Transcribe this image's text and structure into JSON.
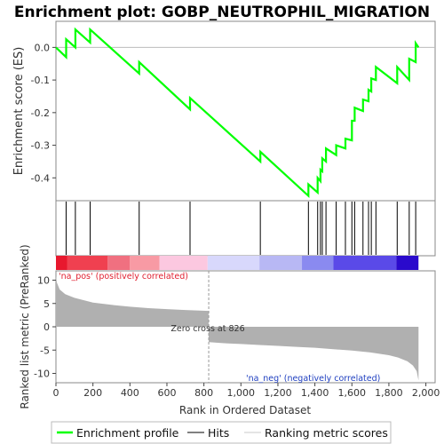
{
  "chart_data": [
    {
      "panel": "enrichment",
      "type": "line",
      "title": "Enrichment plot: GOBP_NEUTROPHIL_MIGRATION",
      "ylabel": "Enrichment score (ES)",
      "ylim": [
        -0.47,
        0.08
      ],
      "yticks": [
        0.0,
        -0.1,
        -0.2,
        -0.3,
        -0.4
      ],
      "ytick_labels": [
        "0.0",
        "-0.1",
        "-0.2",
        "-0.3",
        "-0.4"
      ],
      "color": "#00ff00",
      "x": [
        0,
        55,
        55,
        105,
        105,
        185,
        185,
        450,
        450,
        725,
        725,
        1105,
        1105,
        1365,
        1365,
        1415,
        1415,
        1430,
        1430,
        1440,
        1440,
        1460,
        1460,
        1515,
        1515,
        1565,
        1565,
        1600,
        1600,
        1615,
        1615,
        1660,
        1660,
        1690,
        1690,
        1705,
        1705,
        1730,
        1730,
        1845,
        1845,
        1910,
        1910,
        1945,
        1945,
        1960
      ],
      "y": [
        0.0,
        -0.03,
        0.025,
        0.0,
        0.055,
        0.015,
        0.055,
        -0.08,
        -0.045,
        -0.19,
        -0.155,
        -0.35,
        -0.32,
        -0.455,
        -0.42,
        -0.445,
        -0.4,
        -0.41,
        -0.375,
        -0.38,
        -0.34,
        -0.35,
        -0.31,
        -0.33,
        -0.3,
        -0.31,
        -0.28,
        -0.285,
        -0.225,
        -0.225,
        -0.185,
        -0.195,
        -0.16,
        -0.165,
        -0.13,
        -0.135,
        -0.095,
        -0.1,
        -0.06,
        -0.11,
        -0.06,
        -0.1,
        -0.035,
        -0.045,
        0.013,
        0.0
      ],
      "grid": false,
      "zero_line": true
    },
    {
      "panel": "hits",
      "type": "scatter",
      "series": [
        {
          "name": "Hits",
          "x": [
            55,
            105,
            185,
            450,
            725,
            1105,
            1365,
            1415,
            1430,
            1440,
            1460,
            1515,
            1565,
            1600,
            1615,
            1660,
            1690,
            1705,
            1730,
            1845,
            1910,
            1945
          ]
        }
      ]
    },
    {
      "panel": "color-bar",
      "type": "heatmap",
      "segments": [
        {
          "from": 0,
          "to": 60,
          "color": "#e8182e"
        },
        {
          "from": 60,
          "to": 280,
          "color": "#f04050"
        },
        {
          "from": 280,
          "to": 400,
          "color": "#f07080"
        },
        {
          "from": 400,
          "to": 560,
          "color": "#f89aa4"
        },
        {
          "from": 560,
          "to": 820,
          "color": "#fcc8e0"
        },
        {
          "from": 820,
          "to": 1100,
          "color": "#d8d8fc"
        },
        {
          "from": 1100,
          "to": 1330,
          "color": "#b8b8f4"
        },
        {
          "from": 1330,
          "to": 1500,
          "color": "#8a8af0"
        },
        {
          "from": 1500,
          "to": 1840,
          "color": "#5a4ae8"
        },
        {
          "from": 1840,
          "to": 1960,
          "color": "#2a0acc"
        }
      ]
    },
    {
      "panel": "ranking",
      "type": "area",
      "xlabel": "Rank in Ordered Dataset",
      "ylabel": "Ranked list metric (PreRanked)",
      "xlim": [
        0,
        2050
      ],
      "xticks": [
        0,
        200,
        400,
        600,
        800,
        1000,
        1200,
        1400,
        1600,
        1800,
        2000
      ],
      "xtick_labels": [
        "0",
        "200",
        "400",
        "600",
        "800",
        "1,000",
        "1,200",
        "1,400",
        "1,600",
        "1,800",
        "2,000"
      ],
      "ylim": [
        -12,
        12
      ],
      "yticks": [
        10,
        5,
        0,
        -5,
        -10
      ],
      "ytick_labels": [
        "10",
        "5",
        "0",
        "-5",
        "-10"
      ],
      "x": [
        0,
        5,
        20,
        50,
        100,
        200,
        300,
        400,
        500,
        600,
        700,
        825,
        826,
        900,
        1000,
        1100,
        1200,
        1300,
        1400,
        1500,
        1600,
        1700,
        1800,
        1850,
        1900,
        1930,
        1950,
        1960
      ],
      "y": [
        11.0,
        9.5,
        8.0,
        7.0,
        6.2,
        5.2,
        4.7,
        4.3,
        4.0,
        3.8,
        3.6,
        3.4,
        -3.3,
        -3.5,
        -3.7,
        -3.9,
        -4.1,
        -4.3,
        -4.5,
        -4.8,
        -5.1,
        -5.5,
        -6.1,
        -6.6,
        -7.4,
        -8.3,
        -9.5,
        -11.5
      ],
      "color": "#b0b0b0",
      "zero_cross": 826,
      "annotations": {
        "pos_label": "'na_pos' (positively correlated)",
        "neg_label": "'na_neg' (negatively correlated)",
        "zero_cross_label": "Zero cross at 826"
      }
    }
  ],
  "legend": {
    "placement": "bottom",
    "items": [
      {
        "label": "Enrichment profile",
        "color": "#00ff00"
      },
      {
        "label": "Hits",
        "color": "#000000"
      },
      {
        "label": "Ranking metric scores",
        "color": "#c0c0c0"
      }
    ]
  }
}
